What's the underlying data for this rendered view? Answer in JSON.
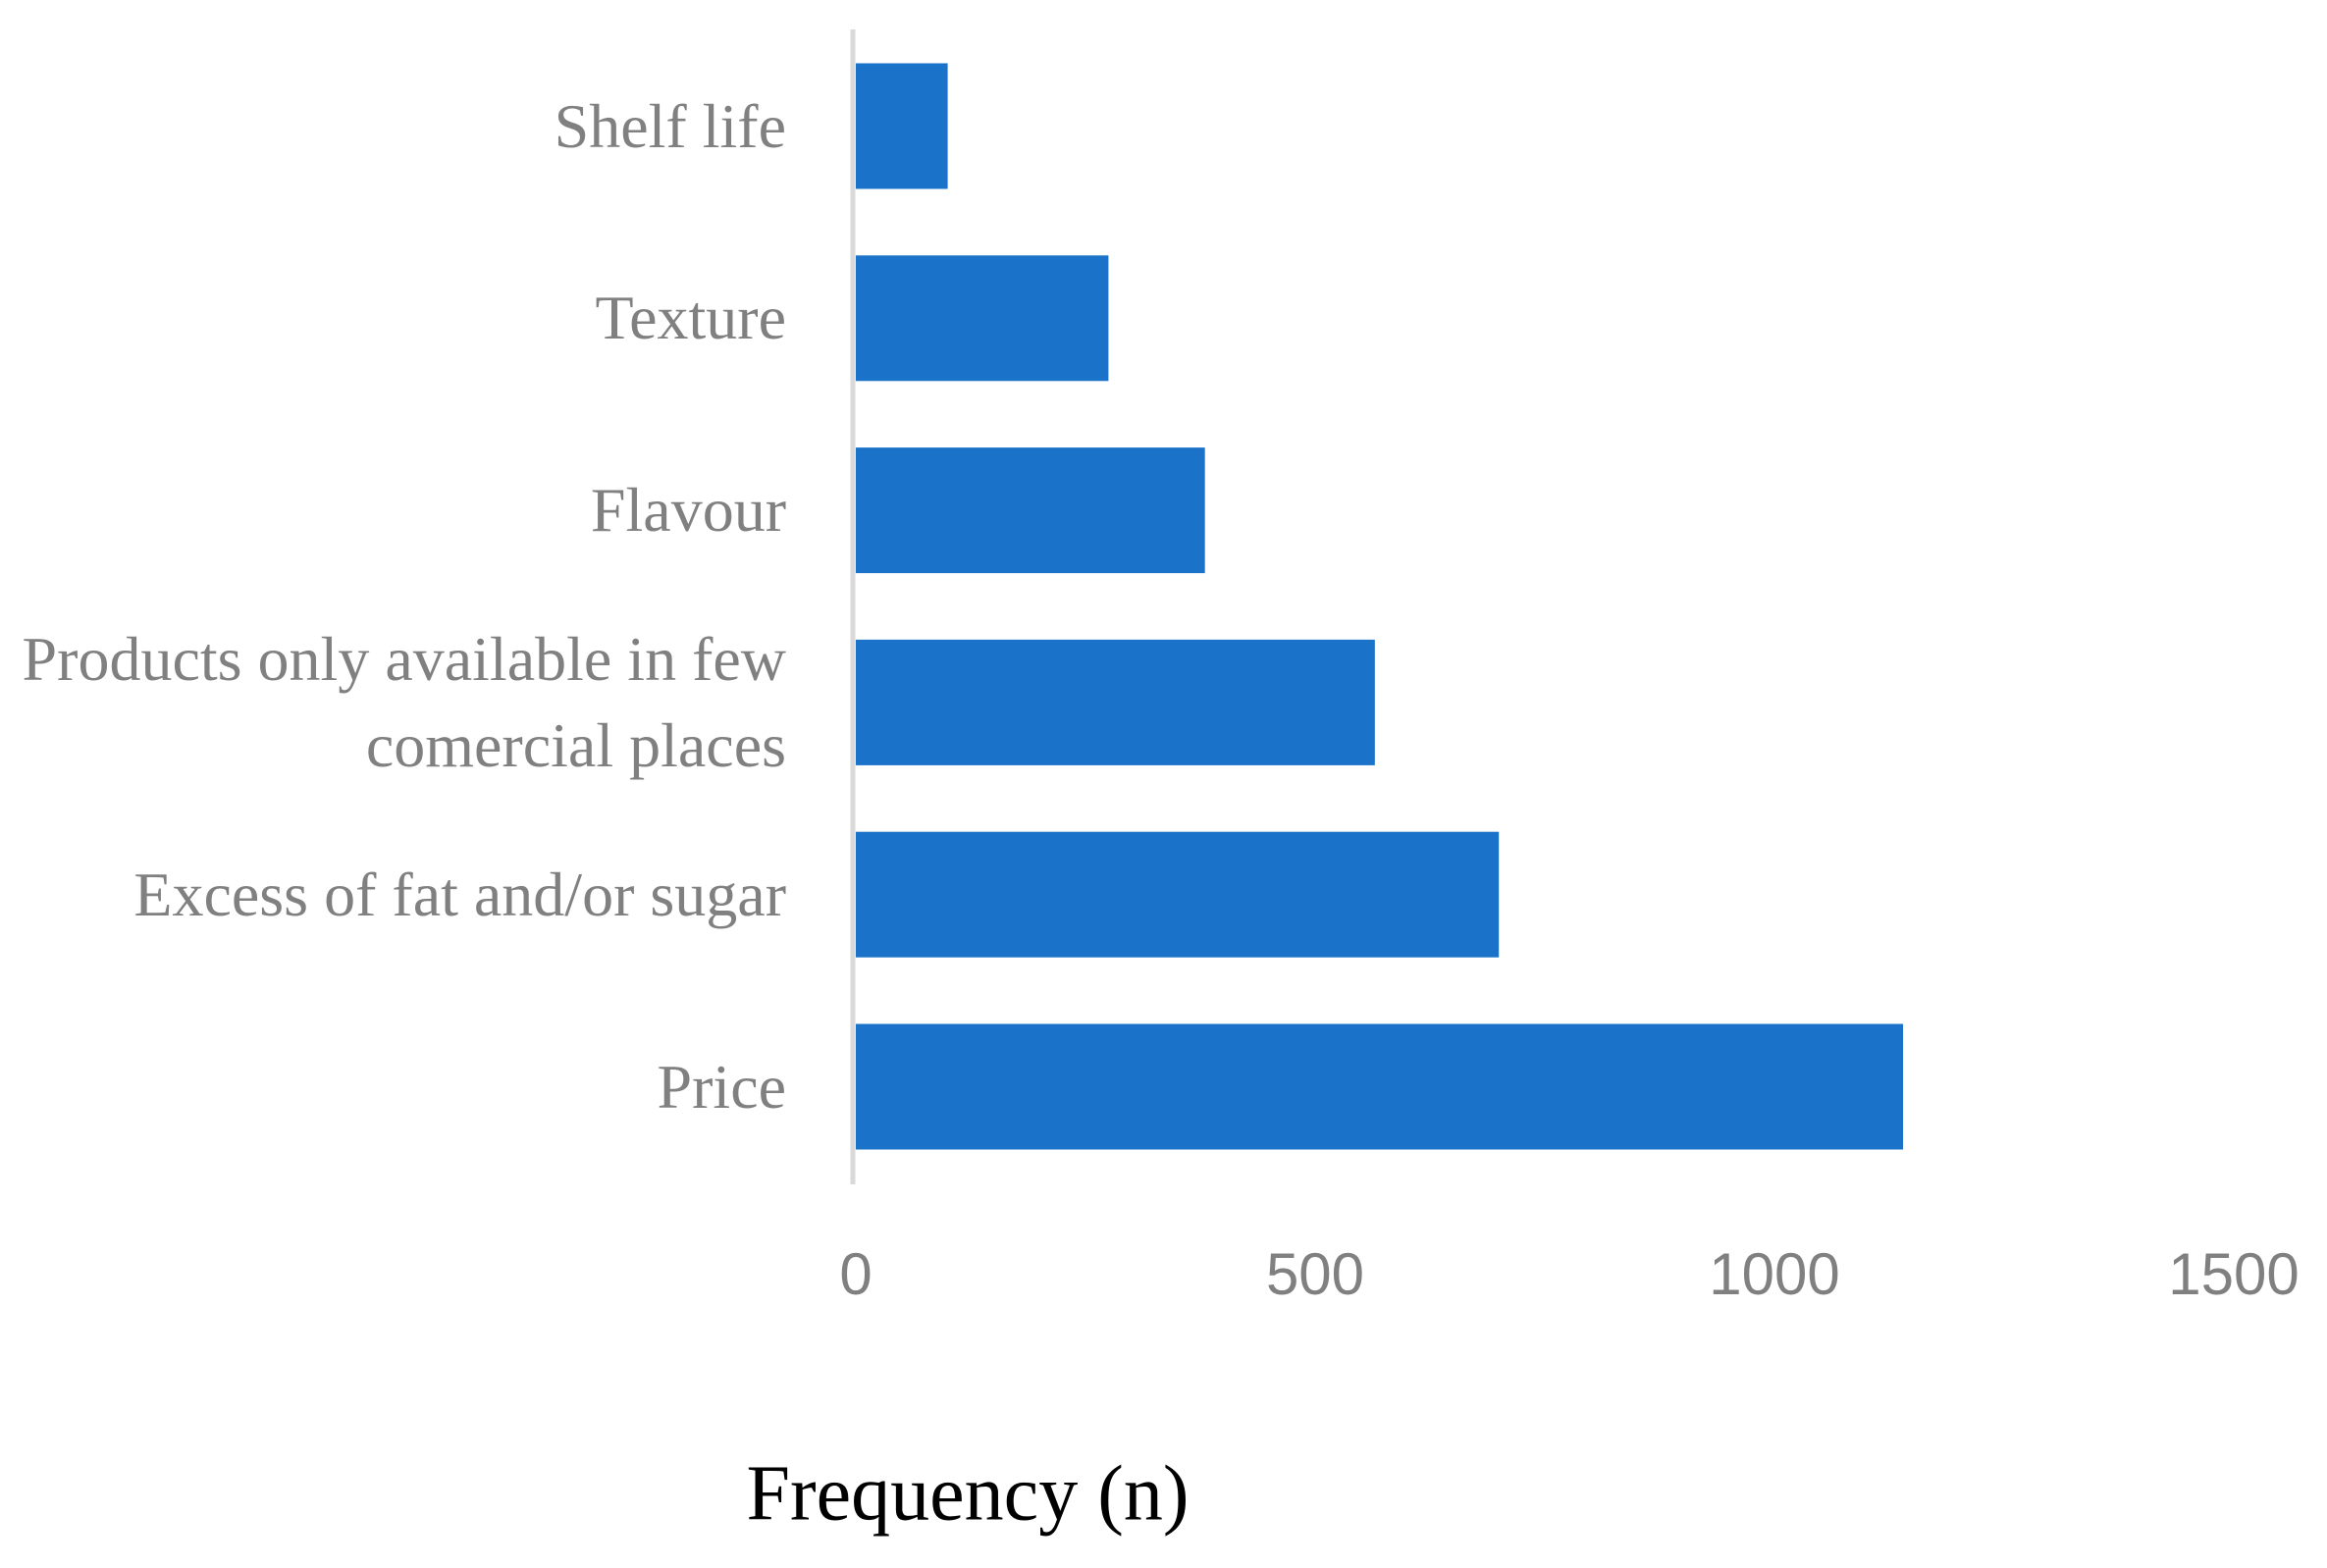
{
  "chart_data": {
    "type": "barh",
    "x_label": "Frequency (n)",
    "categories": [
      "Shelf life",
      "Texture",
      "Flavour",
      "Products only available in few comercial places",
      "Excess of fat and/or sugar",
      "Price"
    ],
    "values": [
      100,
      275,
      380,
      565,
      700,
      1140
    ],
    "color": "#1a73c8",
    "xlim": [
      0,
      1500
    ],
    "xticks": [
      0,
      500,
      1000,
      1500
    ],
    "grid": false
  }
}
